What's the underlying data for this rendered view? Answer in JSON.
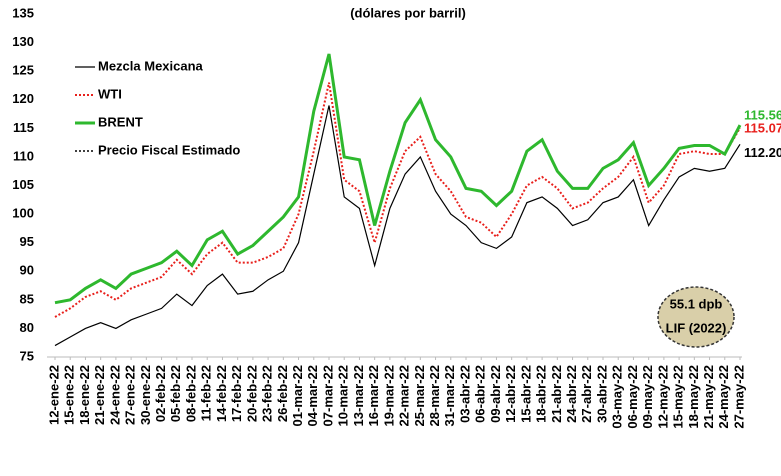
{
  "chart_data": {
    "type": "line",
    "subtitle": "(dólares por barril)",
    "categories": [
      "12-ene-22",
      "15-ene-22",
      "18-ene-22",
      "21-ene-22",
      "24-ene-22",
      "27-ene-22",
      "30-ene-22",
      "02-feb-22",
      "05-feb-22",
      "08-feb-22",
      "11-feb-22",
      "14-feb-22",
      "17-feb-22",
      "20-feb-22",
      "23-feb-22",
      "26-feb-22",
      "01-mar-22",
      "04-mar-22",
      "07-mar-22",
      "10-mar-22",
      "13-mar-22",
      "16-mar-22",
      "19-mar-22",
      "22-mar-22",
      "25-mar-22",
      "28-mar-22",
      "31-mar-22",
      "03-abr-22",
      "06-abr-22",
      "09-abr-22",
      "12-abr-22",
      "15-abr-22",
      "18-abr-22",
      "21-abr-22",
      "24-abr-22",
      "27-abr-22",
      "30-abr-22",
      "03-may-22",
      "06-may-22",
      "09-may-22",
      "12-may-22",
      "15-may-22",
      "18-may-22",
      "21-may-22",
      "24-may-22",
      "27-may-22"
    ],
    "series": [
      {
        "name": "Mezcla Mexicana",
        "color": "#000000",
        "style": "solid",
        "width": 1.2,
        "values": [
          77,
          78.5,
          80,
          81,
          80,
          81.5,
          82.5,
          83.5,
          86,
          84,
          87.5,
          89.5,
          86,
          86.5,
          88.5,
          90,
          95,
          107,
          119,
          103,
          101,
          91,
          101,
          107,
          110,
          104,
          100,
          98,
          95,
          94,
          96,
          102,
          103,
          101,
          98,
          99,
          102,
          103,
          106,
          98,
          102.5,
          106.5,
          108,
          107.5,
          108,
          112.2
        ],
        "value_labels": [
          null,
          null,
          null,
          null,
          null,
          null,
          null,
          null,
          null,
          null,
          null,
          null,
          null,
          null,
          null,
          null,
          null,
          null,
          null,
          null,
          null,
          null,
          null,
          null,
          null,
          null,
          null,
          null,
          null,
          null,
          null,
          null,
          null,
          null,
          null,
          null,
          null,
          null,
          null,
          null,
          null,
          null,
          null,
          null,
          null,
          "112.20"
        ]
      },
      {
        "name": "WTI",
        "color": "#e8201c",
        "style": "dotted",
        "width": 2,
        "values": [
          82,
          83.5,
          85.5,
          86.5,
          85,
          87,
          88,
          89,
          92,
          89.5,
          93,
          95,
          91.5,
          91.5,
          92.5,
          94,
          100,
          111,
          123,
          106,
          104,
          95,
          104.5,
          111,
          113.5,
          107,
          104,
          99.5,
          98.5,
          96,
          100,
          105,
          106.5,
          104.5,
          101,
          102,
          104.5,
          106.5,
          110,
          102,
          105,
          110.5,
          111,
          110.5,
          110.5,
          115.07
        ],
        "value_labels": [
          null,
          null,
          null,
          null,
          null,
          null,
          null,
          null,
          null,
          null,
          null,
          null,
          null,
          null,
          null,
          null,
          null,
          null,
          null,
          null,
          null,
          null,
          null,
          null,
          null,
          null,
          null,
          null,
          null,
          null,
          null,
          null,
          null,
          null,
          null,
          null,
          null,
          null,
          null,
          null,
          null,
          null,
          null,
          null,
          null,
          "115.07"
        ]
      },
      {
        "name": "BRENT",
        "color": "#2eb82e",
        "style": "solid",
        "width": 3,
        "values": [
          84.5,
          85,
          87,
          88.5,
          87,
          89.5,
          90.5,
          91.5,
          93.5,
          91,
          95.5,
          97,
          93,
          94.5,
          97,
          99.5,
          103,
          118,
          128,
          110,
          109.5,
          98,
          107.5,
          116,
          120,
          113,
          110,
          104.5,
          104,
          101.5,
          104,
          111,
          113,
          107.5,
          104.5,
          104.5,
          108,
          109.5,
          112.5,
          105,
          108,
          111.5,
          112,
          112,
          110.5,
          115.56
        ],
        "value_labels": [
          null,
          null,
          null,
          null,
          null,
          null,
          null,
          null,
          null,
          null,
          null,
          null,
          null,
          null,
          null,
          null,
          null,
          null,
          null,
          null,
          null,
          null,
          null,
          null,
          null,
          null,
          null,
          null,
          null,
          null,
          null,
          null,
          null,
          null,
          null,
          null,
          null,
          null,
          null,
          null,
          null,
          null,
          null,
          null,
          null,
          "115.56"
        ]
      }
    ],
    "reference_line": {
      "name": "Precio Fiscal Estimado",
      "value": 55.1,
      "color": "#000000",
      "style": "dotted"
    },
    "annotation": {
      "lines": [
        "55.1 dpb",
        "LIF (2022)"
      ],
      "fill": "#d9cfa9"
    },
    "ylim": [
      75,
      135
    ],
    "yticks": [
      75,
      80,
      85,
      90,
      95,
      100,
      105,
      110,
      115,
      120,
      125,
      130,
      135
    ],
    "grid": false
  }
}
